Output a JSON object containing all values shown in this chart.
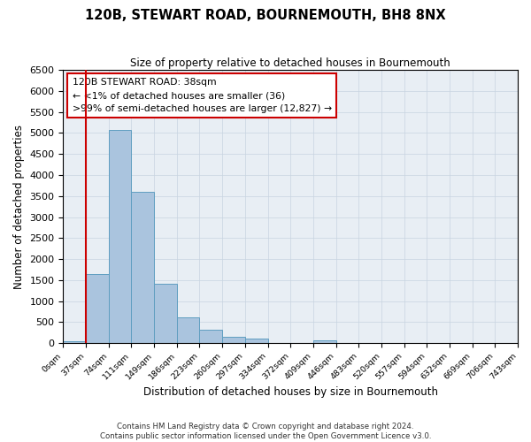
{
  "title": "120B, STEWART ROAD, BOURNEMOUTH, BH8 8NX",
  "subtitle": "Size of property relative to detached houses in Bournemouth",
  "xlabel": "Distribution of detached houses by size in Bournemouth",
  "ylabel": "Number of detached properties",
  "footer_line1": "Contains HM Land Registry data © Crown copyright and database right 2024.",
  "footer_line2": "Contains public sector information licensed under the Open Government Licence v3.0.",
  "bin_labels": [
    "0sqm",
    "37sqm",
    "74sqm",
    "111sqm",
    "149sqm",
    "186sqm",
    "223sqm",
    "260sqm",
    "297sqm",
    "334sqm",
    "372sqm",
    "409sqm",
    "446sqm",
    "483sqm",
    "520sqm",
    "557sqm",
    "594sqm",
    "632sqm",
    "669sqm",
    "706sqm",
    "743sqm"
  ],
  "bar_heights": [
    50,
    1650,
    5080,
    3600,
    1420,
    620,
    310,
    150,
    100,
    0,
    0,
    70,
    0,
    0,
    0,
    0,
    0,
    0,
    0,
    0
  ],
  "bar_color": "#aac4de",
  "bar_edge_color": "#5f9ec0",
  "annotation_box_text": "120B STEWART ROAD: 38sqm\n← <1% of detached houses are smaller (36)\n>99% of semi-detached houses are larger (12,827) →",
  "red_line_bin": 1,
  "ylim": [
    0,
    6500
  ],
  "yticks": [
    0,
    500,
    1000,
    1500,
    2000,
    2500,
    3000,
    3500,
    4000,
    4500,
    5000,
    5500,
    6000,
    6500
  ],
  "grid_color": "#c8d4e0",
  "background_color": "#e8eef4",
  "box_edge_color": "#cc0000",
  "red_line_color": "#cc0000",
  "n_bins": 20
}
